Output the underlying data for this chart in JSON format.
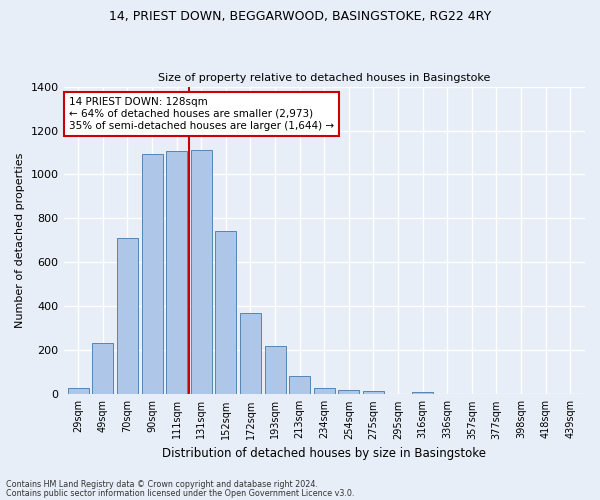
{
  "title1": "14, PRIEST DOWN, BEGGARWOOD, BASINGSTOKE, RG22 4RY",
  "title2": "Size of property relative to detached houses in Basingstoke",
  "xlabel": "Distribution of detached houses by size in Basingstoke",
  "ylabel": "Number of detached properties",
  "categories": [
    "29sqm",
    "49sqm",
    "70sqm",
    "90sqm",
    "111sqm",
    "131sqm",
    "152sqm",
    "172sqm",
    "193sqm",
    "213sqm",
    "234sqm",
    "254sqm",
    "275sqm",
    "295sqm",
    "316sqm",
    "336sqm",
    "357sqm",
    "377sqm",
    "398sqm",
    "418sqm",
    "439sqm"
  ],
  "bar_values": [
    30,
    235,
    710,
    1095,
    1105,
    1110,
    745,
    370,
    220,
    85,
    30,
    20,
    15,
    0,
    10,
    0,
    0,
    0,
    0,
    0,
    0
  ],
  "bar_color": "#aec6e8",
  "bar_edge_color": "#5585b5",
  "red_line_index": 5,
  "ylim": [
    0,
    1400
  ],
  "yticks": [
    0,
    200,
    400,
    600,
    800,
    1000,
    1200,
    1400
  ],
  "annotation_text": "14 PRIEST DOWN: 128sqm\n← 64% of detached houses are smaller (2,973)\n35% of semi-detached houses are larger (1,644) →",
  "annotation_box_color": "#ffffff",
  "annotation_box_edge": "#cc0000",
  "footer1": "Contains HM Land Registry data © Crown copyright and database right 2024.",
  "footer2": "Contains public sector information licensed under the Open Government Licence v3.0.",
  "bg_color": "#e8eef7",
  "grid_color": "#ffffff"
}
